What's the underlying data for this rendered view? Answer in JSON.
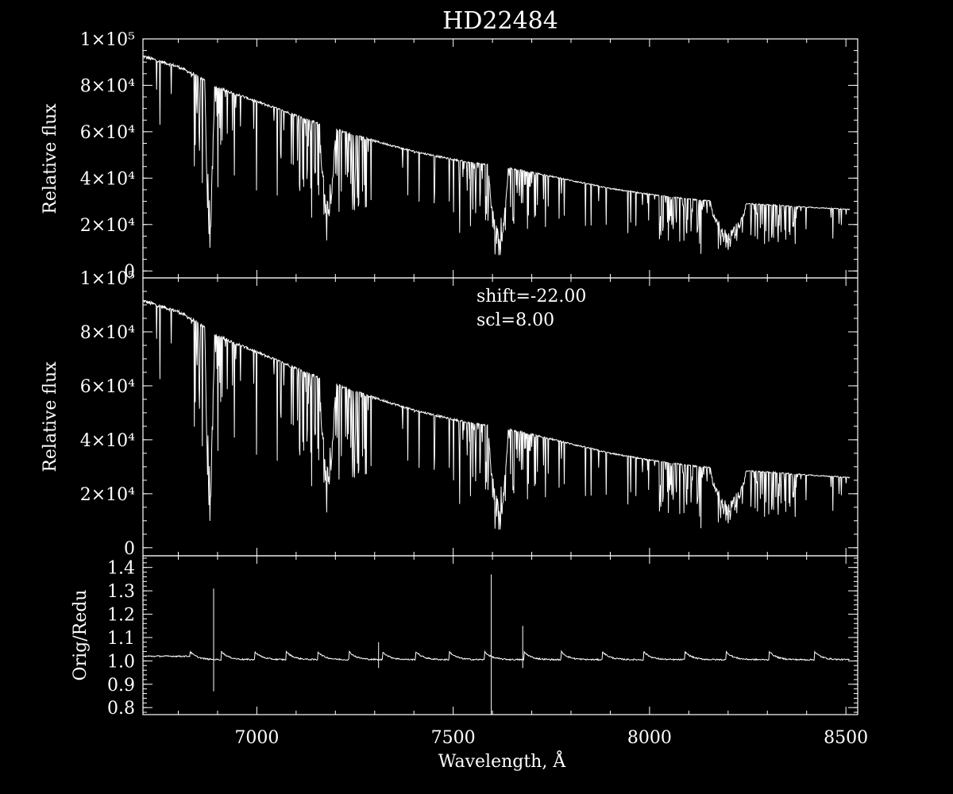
{
  "title": "HD22484",
  "colors": {
    "background": "#000000",
    "foreground": "#ffffff"
  },
  "chart_data": [
    {
      "type": "line",
      "panel": "top",
      "ylabel": "Relative flux",
      "xlim": [
        6710,
        8530
      ],
      "ylim": [
        -3000,
        100000
      ],
      "ytick_labels": [
        "0",
        "2×10⁴",
        "4×10⁴",
        "6×10⁴",
        "8×10⁴",
        "1×10⁵"
      ],
      "yticks": [
        0,
        20000,
        40000,
        60000,
        80000,
        100000
      ],
      "continuum": {
        "x": [
          6710,
          6800,
          6860,
          6900,
          7000,
          7100,
          7200,
          7300,
          7400,
          7500,
          7600,
          7700,
          7800,
          7900,
          8000,
          8100,
          8200,
          8300,
          8400,
          8510
        ],
        "y": [
          92500,
          88000,
          83000,
          79000,
          73000,
          67000,
          61000,
          56000,
          51500,
          48000,
          45500,
          42500,
          39000,
          35500,
          33000,
          31000,
          29500,
          28500,
          27500,
          26500
        ]
      },
      "absorption_bands": [
        {
          "center": 6880,
          "width": 12,
          "min": 1500
        },
        {
          "center": 7180,
          "width": 20,
          "min": 14000
        },
        {
          "center": 7615,
          "width": 25,
          "min": 0
        },
        {
          "center": 8200,
          "width": 45,
          "min": 8000
        }
      ]
    },
    {
      "type": "line",
      "panel": "middle",
      "ylabel": "Relative flux",
      "xlim": [
        6710,
        8530
      ],
      "ylim": [
        -3000,
        100000
      ],
      "ytick_labels": [
        "0",
        "2×10⁴",
        "4×10⁴",
        "6×10⁴",
        "8×10⁴",
        "1×10⁵"
      ],
      "yticks": [
        0,
        20000,
        40000,
        60000,
        80000,
        100000
      ],
      "annotations": [
        "shift=-22.00",
        "scl=8.00"
      ],
      "continuum": {
        "x": [
          6710,
          6800,
          6860,
          6900,
          7000,
          7100,
          7200,
          7300,
          7400,
          7500,
          7600,
          7700,
          7800,
          7900,
          8000,
          8100,
          8200,
          8300,
          8400,
          8510
        ],
        "y": [
          91500,
          87500,
          82500,
          78500,
          72500,
          66500,
          60500,
          55500,
          51000,
          47500,
          45000,
          42000,
          38500,
          35000,
          32500,
          30500,
          29000,
          28000,
          27000,
          26000
        ]
      },
      "absorption_bands": [
        {
          "center": 6880,
          "width": 12,
          "min": 1500
        },
        {
          "center": 7180,
          "width": 20,
          "min": 14000
        },
        {
          "center": 7615,
          "width": 25,
          "min": 0
        },
        {
          "center": 8200,
          "width": 45,
          "min": 8000
        }
      ]
    },
    {
      "type": "line",
      "panel": "bottom",
      "ylabel": "Orig/Redu",
      "xlabel": "Wavelength, Å",
      "xlim": [
        6710,
        8530
      ],
      "ylim": [
        0.77,
        1.45
      ],
      "xticks": [
        7000,
        7500,
        8000,
        8500
      ],
      "xtick_labels": [
        "7000",
        "7500",
        "8000",
        "8500"
      ],
      "yticks": [
        0.8,
        0.9,
        1.0,
        1.1,
        1.2,
        1.3,
        1.4
      ],
      "ytick_labels": [
        "0.8",
        "0.9",
        "1.0",
        "1.1",
        "1.2",
        "1.3",
        "1.4"
      ],
      "baseline": 1.0,
      "sawtooth_peaks": [
        6830,
        6910,
        6995,
        7075,
        7155,
        7235,
        7320,
        7405,
        7490,
        7580,
        7680,
        7775,
        7880,
        7985,
        8090,
        8195,
        8305,
        8420
      ],
      "spikes": [
        {
          "x": 6890,
          "hi": 1.31,
          "lo": 0.87
        },
        {
          "x": 7310,
          "hi": 1.08,
          "lo": 0.97
        },
        {
          "x": 7597,
          "hi": 1.37,
          "lo": 0.77
        },
        {
          "x": 7677,
          "hi": 1.15,
          "lo": 0.97
        }
      ]
    }
  ]
}
